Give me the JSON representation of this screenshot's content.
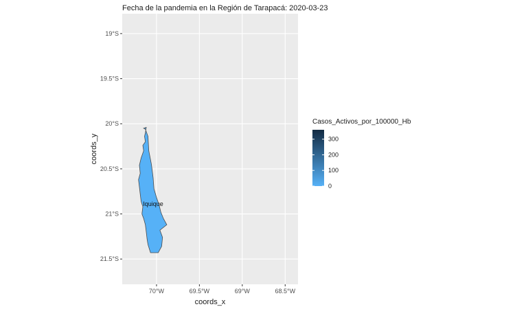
{
  "title": "Fecha de la pandemia en la Región de Tarapacá: 2020-03-23",
  "axes": {
    "x_title": "coords_x",
    "y_title": "coords_y",
    "x_ticks": [
      {
        "value": -70.0,
        "label": "70°W"
      },
      {
        "value": -69.5,
        "label": "69.5°W"
      },
      {
        "value": -69.0,
        "label": "69°W"
      },
      {
        "value": -68.5,
        "label": "68.5°W"
      }
    ],
    "y_ticks": [
      {
        "value": -19.0,
        "label": "19°S"
      },
      {
        "value": -19.5,
        "label": "19.5°S"
      },
      {
        "value": -20.0,
        "label": "20°S"
      },
      {
        "value": -20.5,
        "label": "20.5°S"
      },
      {
        "value": -21.0,
        "label": "21°S"
      },
      {
        "value": -21.5,
        "label": "21.5°S"
      }
    ],
    "xlim": [
      -70.4,
      -68.35
    ],
    "ylim": [
      -21.78,
      -18.78
    ],
    "grid": true
  },
  "legend": {
    "title": "Casos_Activos_por_100000_Hb",
    "min": 0,
    "max": 360,
    "ticks": [
      {
        "value": 0,
        "label": "0"
      },
      {
        "value": 100,
        "label": "100"
      },
      {
        "value": 200,
        "label": "200"
      },
      {
        "value": 300,
        "label": "300"
      }
    ],
    "color_low": "#56B1F7",
    "color_high": "#132B43",
    "position": "right"
  },
  "regions": [
    {
      "name": "Iquique",
      "value": 0,
      "fill": "#56B1F7",
      "label_at": [
        -70.04,
        -20.89
      ],
      "outline": [
        [
          -70.15,
          -20.05
        ],
        [
          -70.12,
          -20.04
        ],
        [
          -70.13,
          -20.1
        ],
        [
          -70.14,
          -20.14
        ],
        [
          -70.13,
          -20.2
        ],
        [
          -70.16,
          -20.24
        ],
        [
          -70.15,
          -20.3
        ],
        [
          -70.18,
          -20.38
        ],
        [
          -70.2,
          -20.46
        ],
        [
          -70.19,
          -20.55
        ],
        [
          -70.21,
          -20.62
        ],
        [
          -70.2,
          -20.7
        ],
        [
          -70.19,
          -20.78
        ],
        [
          -70.18,
          -20.86
        ],
        [
          -70.16,
          -20.92
        ],
        [
          -70.17,
          -21.0
        ],
        [
          -70.15,
          -21.05
        ],
        [
          -70.13,
          -21.12
        ],
        [
          -70.12,
          -21.2
        ],
        [
          -70.11,
          -21.28
        ],
        [
          -70.1,
          -21.34
        ],
        [
          -70.07,
          -21.43
        ],
        [
          -69.98,
          -21.43
        ],
        [
          -69.94,
          -21.36
        ],
        [
          -69.93,
          -21.26
        ],
        [
          -69.96,
          -21.18
        ],
        [
          -69.88,
          -21.12
        ],
        [
          -69.92,
          -21.05
        ],
        [
          -69.95,
          -20.98
        ],
        [
          -69.97,
          -20.9
        ],
        [
          -70.0,
          -20.82
        ],
        [
          -70.03,
          -20.72
        ],
        [
          -70.04,
          -20.6
        ],
        [
          -70.06,
          -20.45
        ],
        [
          -70.09,
          -20.3
        ],
        [
          -70.1,
          -20.14
        ],
        [
          -70.13,
          -20.06
        ],
        [
          -70.15,
          -20.05
        ]
      ]
    }
  ]
}
